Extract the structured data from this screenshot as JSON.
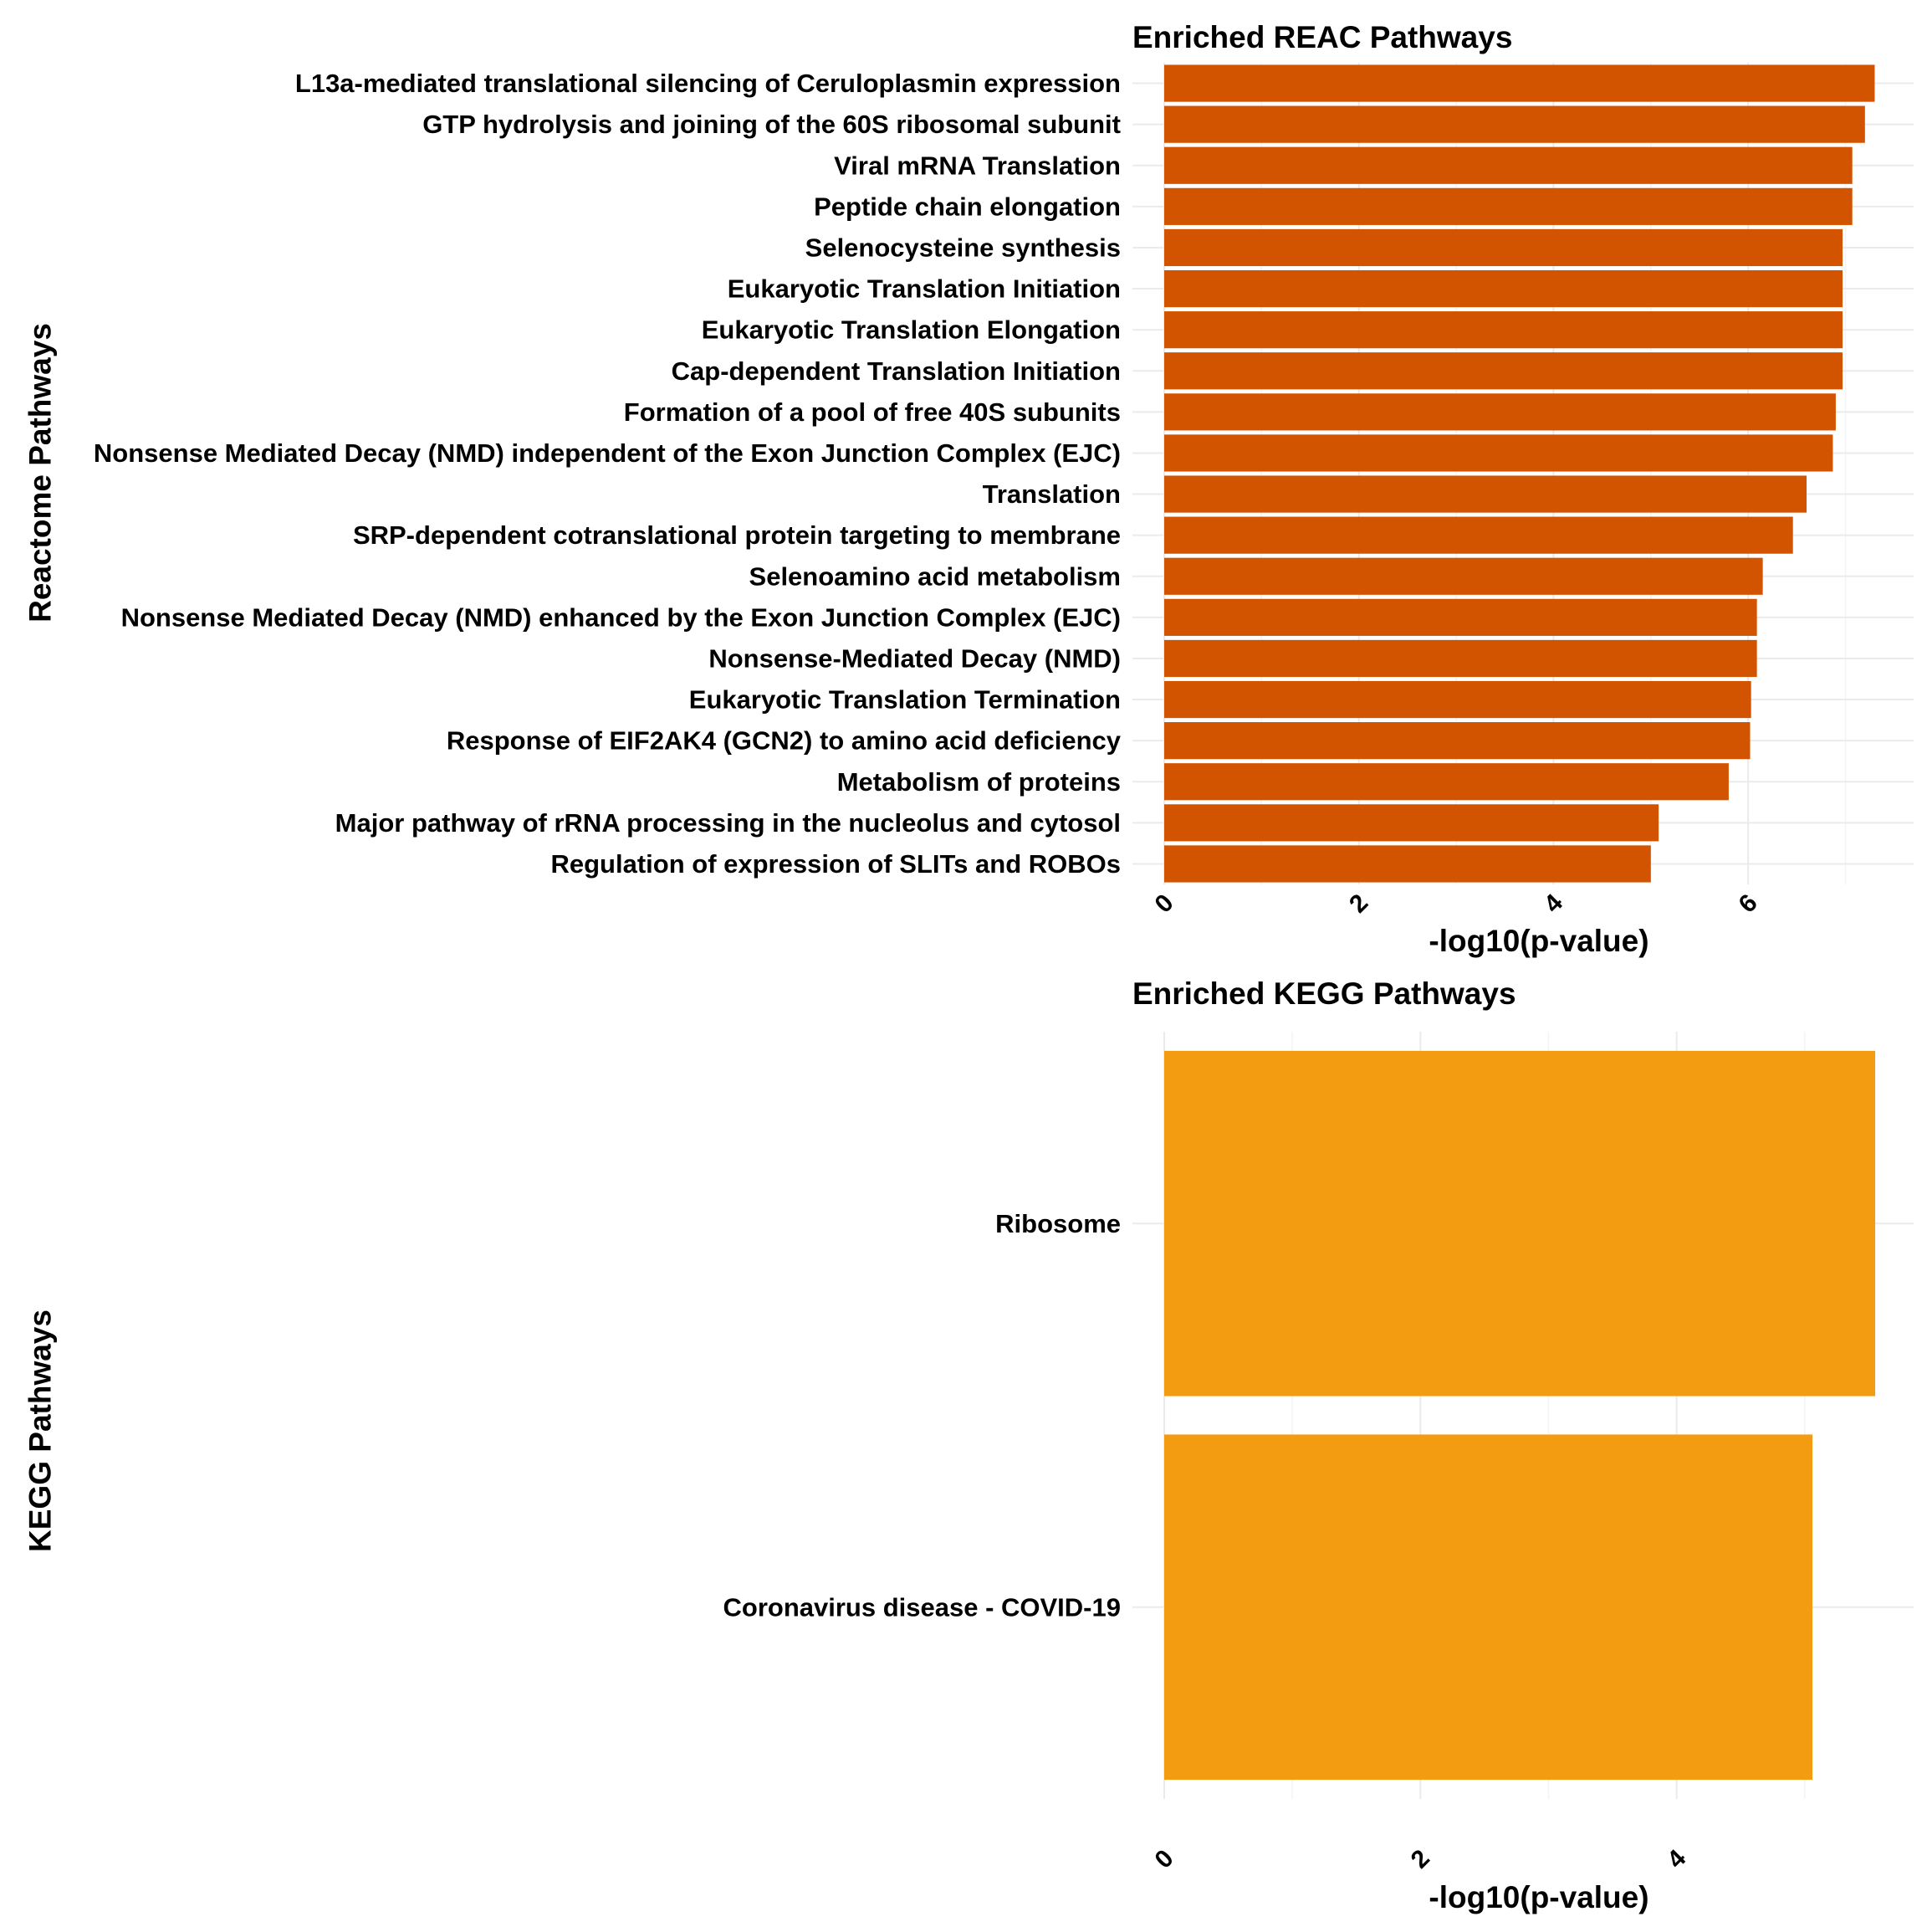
{
  "chart_data": [
    {
      "type": "bar",
      "orientation": "horizontal",
      "title": "Enriched REAC Pathways",
      "xlabel": "-log10(p-value)",
      "ylabel": "Reactome Pathways",
      "bar_color": "#d35400",
      "xlim": [
        0,
        7.7
      ],
      "xticks": [
        0,
        2,
        4,
        6
      ],
      "grid": true,
      "legend": "none",
      "categories": [
        "L13a-mediated translational silencing of Ceruloplasmin expression",
        "GTP hydrolysis and joining of the 60S ribosomal subunit",
        "Viral mRNA Translation",
        "Peptide chain elongation",
        "Selenocysteine synthesis",
        "Eukaryotic Translation Initiation",
        "Eukaryotic Translation Elongation",
        "Cap-dependent Translation Initiation",
        "Formation of a pool of free 40S subunits",
        "Nonsense Mediated Decay (NMD) independent of the Exon Junction Complex (EJC)",
        "Translation",
        "SRP-dependent cotranslational protein targeting to membrane",
        "Selenoamino acid metabolism",
        "Nonsense Mediated Decay (NMD) enhanced by the Exon Junction Complex (EJC)",
        "Nonsense-Mediated Decay (NMD)",
        "Eukaryotic Translation Termination",
        "Response of EIF2AK4 (GCN2) to amino acid deficiency",
        "Metabolism of proteins",
        "Major pathway of rRNA processing in the nucleolus and cytosol",
        "Regulation of expression of SLITs and ROBOs"
      ],
      "values": [
        7.3,
        7.2,
        7.07,
        7.07,
        6.97,
        6.97,
        6.97,
        6.97,
        6.9,
        6.87,
        6.6,
        6.46,
        6.15,
        6.09,
        6.09,
        6.03,
        6.02,
        5.8,
        5.08,
        5.0
      ]
    },
    {
      "type": "bar",
      "orientation": "horizontal",
      "title": "Enriched KEGG Pathways",
      "xlabel": "-log10(p-value)",
      "ylabel": "KEGG Pathways",
      "bar_color": "#f39c12",
      "xlim": [
        0,
        5.85
      ],
      "xticks": [
        0,
        2,
        4
      ],
      "grid": true,
      "legend": "none",
      "categories": [
        "Ribosome",
        "Coronavirus disease - COVID-19"
      ],
      "values": [
        5.55,
        5.06
      ]
    }
  ]
}
